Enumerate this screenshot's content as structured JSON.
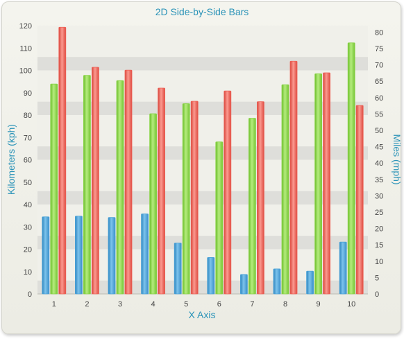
{
  "chart_data": {
    "type": "bar",
    "title": "2D Side-by-Side Bars",
    "xlabel": "X Axis",
    "ylabel": "Kilometers (kph)",
    "y2label": "Miles (mph)",
    "categories": [
      "1",
      "2",
      "3",
      "4",
      "5",
      "6",
      "7",
      "8",
      "9",
      "10"
    ],
    "ylim": [
      0,
      120
    ],
    "yticks": [
      0,
      10,
      20,
      30,
      40,
      50,
      60,
      70,
      80,
      90,
      100,
      110,
      120
    ],
    "y2lim": [
      0,
      82
    ],
    "y2ticks": [
      0,
      5,
      10,
      15,
      20,
      25,
      30,
      35,
      40,
      45,
      50,
      55,
      60,
      65,
      70,
      75,
      80
    ],
    "grid": true,
    "legend": "none",
    "series": [
      {
        "values": [
          34.5,
          34.8,
          34.2,
          35.8,
          22.8,
          16.3,
          8.7,
          11.2,
          10.2,
          23.2
        ],
        "color": "#4aa3d8"
      },
      {
        "values": [
          93.9,
          97.8,
          95.4,
          80.6,
          85.1,
          68.0,
          78.6,
          93.6,
          98.5,
          112.3
        ],
        "color": "#8ad448"
      },
      {
        "values": [
          119.3,
          101.4,
          100.1,
          92.1,
          86.2,
          90.8,
          86.0,
          104.1,
          98.9,
          84.3
        ],
        "color": "#ee6055"
      }
    ]
  }
}
